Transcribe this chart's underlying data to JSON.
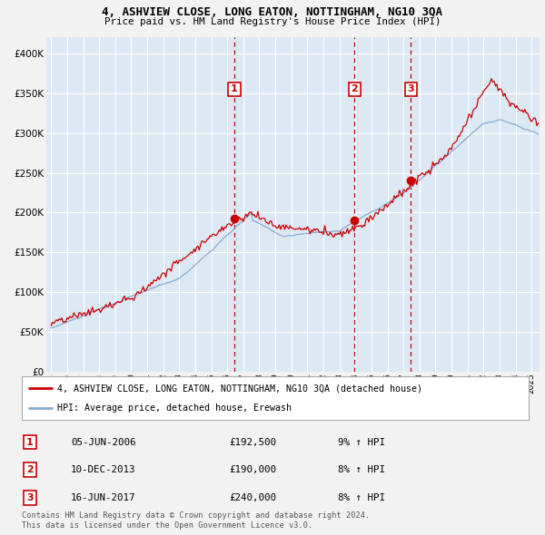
{
  "title1": "4, ASHVIEW CLOSE, LONG EATON, NOTTINGHAM, NG10 3QA",
  "title2": "Price paid vs. HM Land Registry's House Price Index (HPI)",
  "plot_bg_color": "#dce9f5",
  "fig_bg_color": "#f2f2f2",
  "red_line_label": "4, ASHVIEW CLOSE, LONG EATON, NOTTINGHAM, NG10 3QA (detached house)",
  "blue_line_label": "HPI: Average price, detached house, Erewash",
  "transactions": [
    {
      "num": 1,
      "date": "05-JUN-2006",
      "price": 192500,
      "pct": "9%",
      "x_year": 2006.44
    },
    {
      "num": 2,
      "date": "10-DEC-2013",
      "price": 190000,
      "pct": "8%",
      "x_year": 2013.94
    },
    {
      "num": 3,
      "date": "16-JUN-2017",
      "price": 240000,
      "pct": "8%",
      "x_year": 2017.46
    }
  ],
  "footer": "Contains HM Land Registry data © Crown copyright and database right 2024.\nThis data is licensed under the Open Government Licence v3.0.",
  "ylim": [
    0,
    420000
  ],
  "xlim_start": 1994.7,
  "xlim_end": 2025.5,
  "yticks": [
    0,
    50000,
    100000,
    150000,
    200000,
    250000,
    300000,
    350000,
    400000
  ],
  "ytick_labels": [
    "£0",
    "£50K",
    "£100K",
    "£150K",
    "£200K",
    "£250K",
    "£300K",
    "£350K",
    "£400K"
  ],
  "xtick_years": [
    1995,
    1996,
    1997,
    1998,
    1999,
    2000,
    2001,
    2002,
    2003,
    2004,
    2005,
    2006,
    2007,
    2008,
    2009,
    2010,
    2011,
    2012,
    2013,
    2014,
    2015,
    2016,
    2017,
    2018,
    2019,
    2020,
    2021,
    2022,
    2023,
    2024,
    2025
  ],
  "red_color": "#cc0000",
  "blue_color": "#88aad0",
  "grid_color": "#ffffff",
  "seed": 42
}
